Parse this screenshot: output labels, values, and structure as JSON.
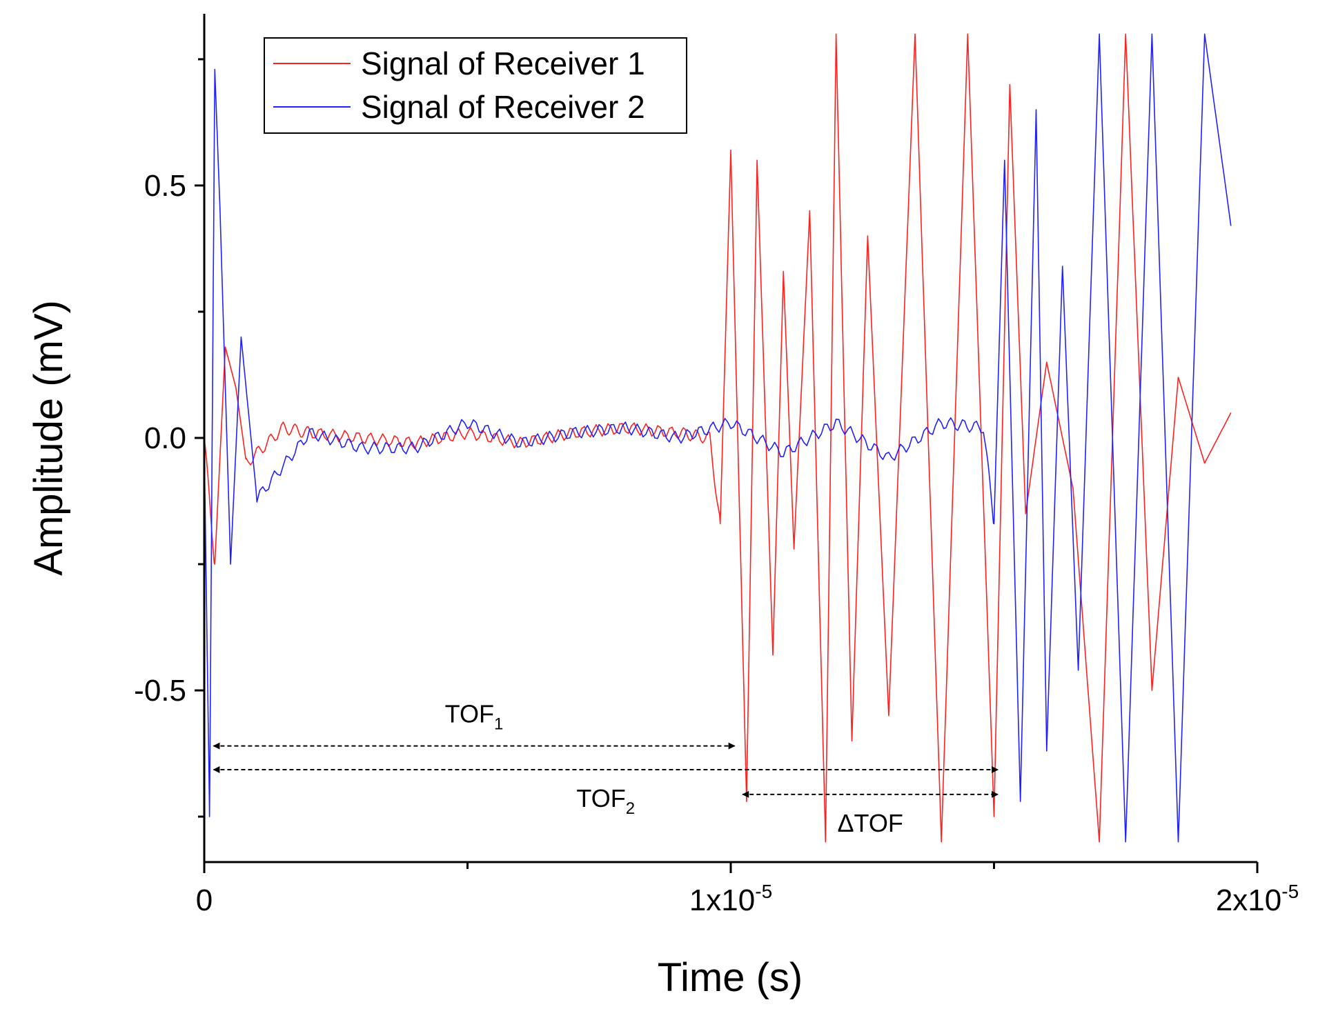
{
  "chart_data": {
    "type": "line",
    "title": "",
    "xlabel": "Time (s)",
    "ylabel": "Amplitude (mV)",
    "xlim": [
      0,
      2e-05
    ],
    "ylim": [
      -0.84,
      0.84
    ],
    "grid": false,
    "legend_position": "top-left",
    "xticks": [
      {
        "value": 0,
        "base": "0",
        "exp": ""
      },
      {
        "value": 1e-05,
        "base": "1x10",
        "exp": "-5"
      },
      {
        "value": 2e-05,
        "base": "2x10",
        "exp": "-5"
      }
    ],
    "x_minor_ticks": [
      5e-06,
      1.5e-05
    ],
    "yticks": [
      {
        "value": 0.5,
        "label": "0.5"
      },
      {
        "value": 0.0,
        "label": "0.0"
      },
      {
        "value": -0.5,
        "label": "-0.5"
      }
    ],
    "y_minor_ticks": [
      0.75,
      0.25,
      -0.25,
      -0.75
    ],
    "series": [
      {
        "name": "Signal of Receiver 1",
        "color": "#ff2020",
        "x": [
          0,
          2e-07,
          4e-07,
          6e-07,
          8e-07,
          1.5e-06,
          2e-06,
          3e-06,
          4e-06,
          5e-06,
          6e-06,
          7e-06,
          8e-06,
          9e-06,
          9.6e-06,
          9.8e-06,
          1e-05,
          1.03e-05,
          1.05e-05,
          1.08e-05,
          1.1e-05,
          1.12e-05,
          1.15e-05,
          1.18e-05,
          1.2e-05,
          1.23e-05,
          1.26e-05,
          1.3e-05,
          1.35e-05,
          1.4e-05,
          1.45e-05,
          1.5e-05,
          1.53e-05,
          1.56e-05,
          1.6e-05,
          1.65e-05,
          1.7e-05,
          1.75e-05,
          1.8e-05,
          1.85e-05,
          1.9e-05,
          1.95e-05
        ],
        "values": [
          0.0,
          -0.25,
          0.18,
          0.1,
          -0.05,
          0.02,
          0.01,
          0.0,
          -0.01,
          0.01,
          -0.01,
          0.01,
          0.02,
          0.01,
          0.0,
          -0.17,
          0.57,
          -0.72,
          0.55,
          -0.43,
          0.33,
          -0.22,
          0.45,
          -0.8,
          0.8,
          -0.6,
          0.4,
          -0.55,
          0.8,
          -0.8,
          0.8,
          -0.75,
          0.7,
          -0.15,
          0.15,
          -0.1,
          -0.8,
          0.8,
          -0.5,
          0.12,
          -0.05,
          0.05
        ]
      },
      {
        "name": "Signal of Receiver 2",
        "color": "#2020ff",
        "x": [
          0,
          1e-07,
          2e-07,
          3e-07,
          5e-07,
          7e-07,
          1e-06,
          2e-06,
          3e-06,
          4e-06,
          5e-06,
          6e-06,
          7e-06,
          8e-06,
          9e-06,
          1e-05,
          1.1e-05,
          1.2e-05,
          1.3e-05,
          1.4e-05,
          1.48e-05,
          1.5e-05,
          1.52e-05,
          1.55e-05,
          1.58e-05,
          1.6e-05,
          1.63e-05,
          1.66e-05,
          1.7e-05,
          1.75e-05,
          1.8e-05,
          1.85e-05,
          1.9e-05,
          1.95e-05
        ],
        "values": [
          0.0,
          -0.75,
          0.73,
          0.45,
          -0.25,
          0.2,
          -0.12,
          0.01,
          -0.02,
          -0.02,
          0.03,
          -0.01,
          0.01,
          0.02,
          0.0,
          0.03,
          -0.03,
          0.03,
          -0.04,
          0.03,
          0.02,
          -0.17,
          0.55,
          -0.72,
          0.65,
          -0.62,
          0.34,
          -0.46,
          0.8,
          -0.8,
          0.8,
          -0.8,
          0.8,
          0.42
        ]
      }
    ],
    "annotations": [
      {
        "id": "tof1",
        "label": "TOF",
        "sub": "1",
        "from": 1.5e-07,
        "to": 1.01e-05,
        "at_y": -0.61
      },
      {
        "id": "tof2",
        "label": "TOF",
        "sub": "2",
        "from": 1.5e-07,
        "to": 1.51e-05,
        "at_y": -0.657
      },
      {
        "id": "dtof",
        "label": "ΔTOF",
        "sub": "",
        "from": 1.02e-05,
        "to": 1.51e-05,
        "at_y": -0.706
      }
    ]
  }
}
